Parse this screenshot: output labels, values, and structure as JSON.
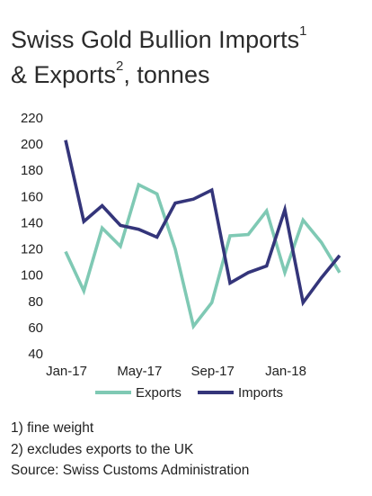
{
  "title": {
    "line1": "Swiss Gold Bullion Imports",
    "sup1": "1",
    "line2_prefix": "& Exports",
    "sup2": "2",
    "line2_suffix": ", tonnes"
  },
  "footnotes": [
    "1) fine weight",
    "2) excludes exports to the UK",
    "Source: Swiss Customs Administration"
  ],
  "chart_data": {
    "type": "line",
    "title": "Swiss Gold Bullion Imports & Exports, tonnes",
    "xlabel": "",
    "ylabel": "",
    "ylim": [
      40,
      220
    ],
    "yticks": [
      40,
      60,
      80,
      100,
      120,
      140,
      160,
      180,
      200,
      220
    ],
    "x": [
      "Jan-17",
      "Feb-17",
      "Mar-17",
      "Apr-17",
      "May-17",
      "Jun-17",
      "Jul-17",
      "Aug-17",
      "Sep-17",
      "Oct-17",
      "Nov-17",
      "Dec-17",
      "Jan-18",
      "Feb-18",
      "Mar-18",
      "Apr-18"
    ],
    "xtick_labels": [
      {
        "index": 0,
        "label": "Jan-17"
      },
      {
        "index": 4,
        "label": "May-17"
      },
      {
        "index": 8,
        "label": "Sep-17"
      },
      {
        "index": 12,
        "label": "Jan-18"
      }
    ],
    "series": [
      {
        "name": "Exports",
        "color": "#7fc9b4",
        "values": [
          118,
          88,
          136,
          122,
          169,
          162,
          120,
          61,
          79,
          130,
          131,
          149,
          102,
          142,
          125,
          102
        ]
      },
      {
        "name": "Imports",
        "color": "#34357a",
        "values": [
          203,
          141,
          153,
          138,
          135,
          129,
          155,
          158,
          165,
          94,
          102,
          107,
          150,
          79,
          98,
          115
        ]
      }
    ],
    "grid": false,
    "legend": "bottom"
  }
}
